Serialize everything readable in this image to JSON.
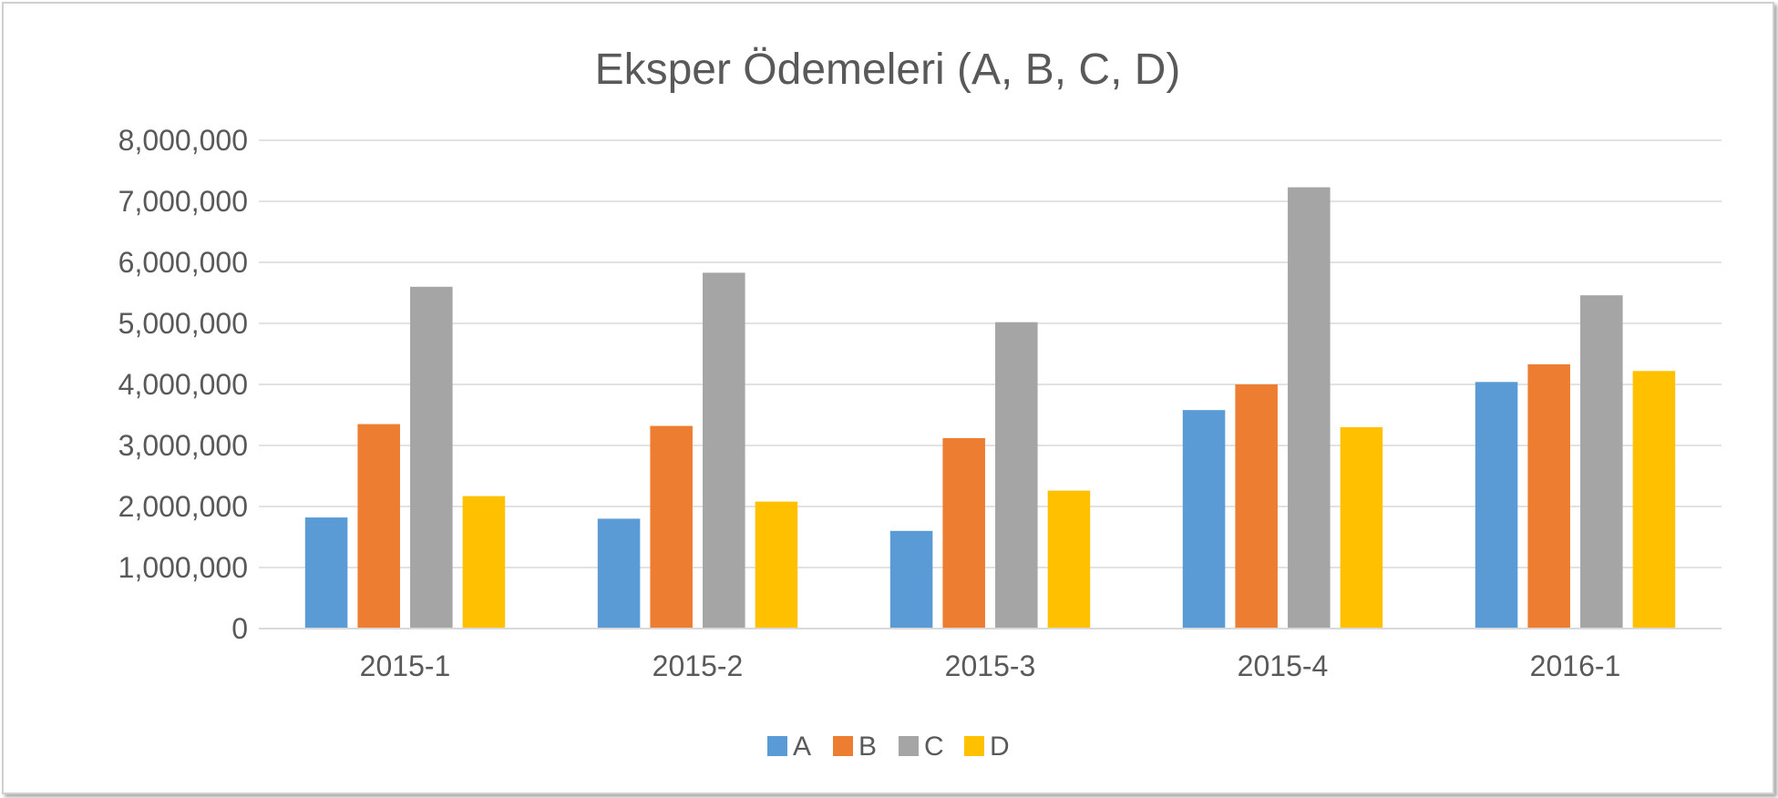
{
  "chart_data": {
    "type": "bar",
    "title": "Eksper Ödemeleri (A, B, C, D)",
    "xlabel": "",
    "ylabel": "",
    "categories": [
      "2015-1",
      "2015-2",
      "2015-3",
      "2015-4",
      "2016-1"
    ],
    "series": [
      {
        "name": "A",
        "color": "#5b9bd5",
        "values": [
          1820000,
          1800000,
          1600000,
          3580000,
          4040000
        ]
      },
      {
        "name": "B",
        "color": "#ed7d31",
        "values": [
          3350000,
          3320000,
          3120000,
          4000000,
          4330000
        ]
      },
      {
        "name": "C",
        "color": "#a5a5a5",
        "values": [
          5600000,
          5830000,
          5020000,
          7230000,
          5460000
        ]
      },
      {
        "name": "D",
        "color": "#ffc000",
        "values": [
          2170000,
          2080000,
          2260000,
          3300000,
          4220000
        ]
      }
    ],
    "ylim": [
      0,
      8000000
    ],
    "yticks": [
      "0",
      "1,000,000",
      "2,000,000",
      "3,000,000",
      "4,000,000",
      "5,000,000",
      "6,000,000",
      "7,000,000",
      "8,000,000"
    ],
    "grid": true,
    "legend_position": "bottom"
  }
}
